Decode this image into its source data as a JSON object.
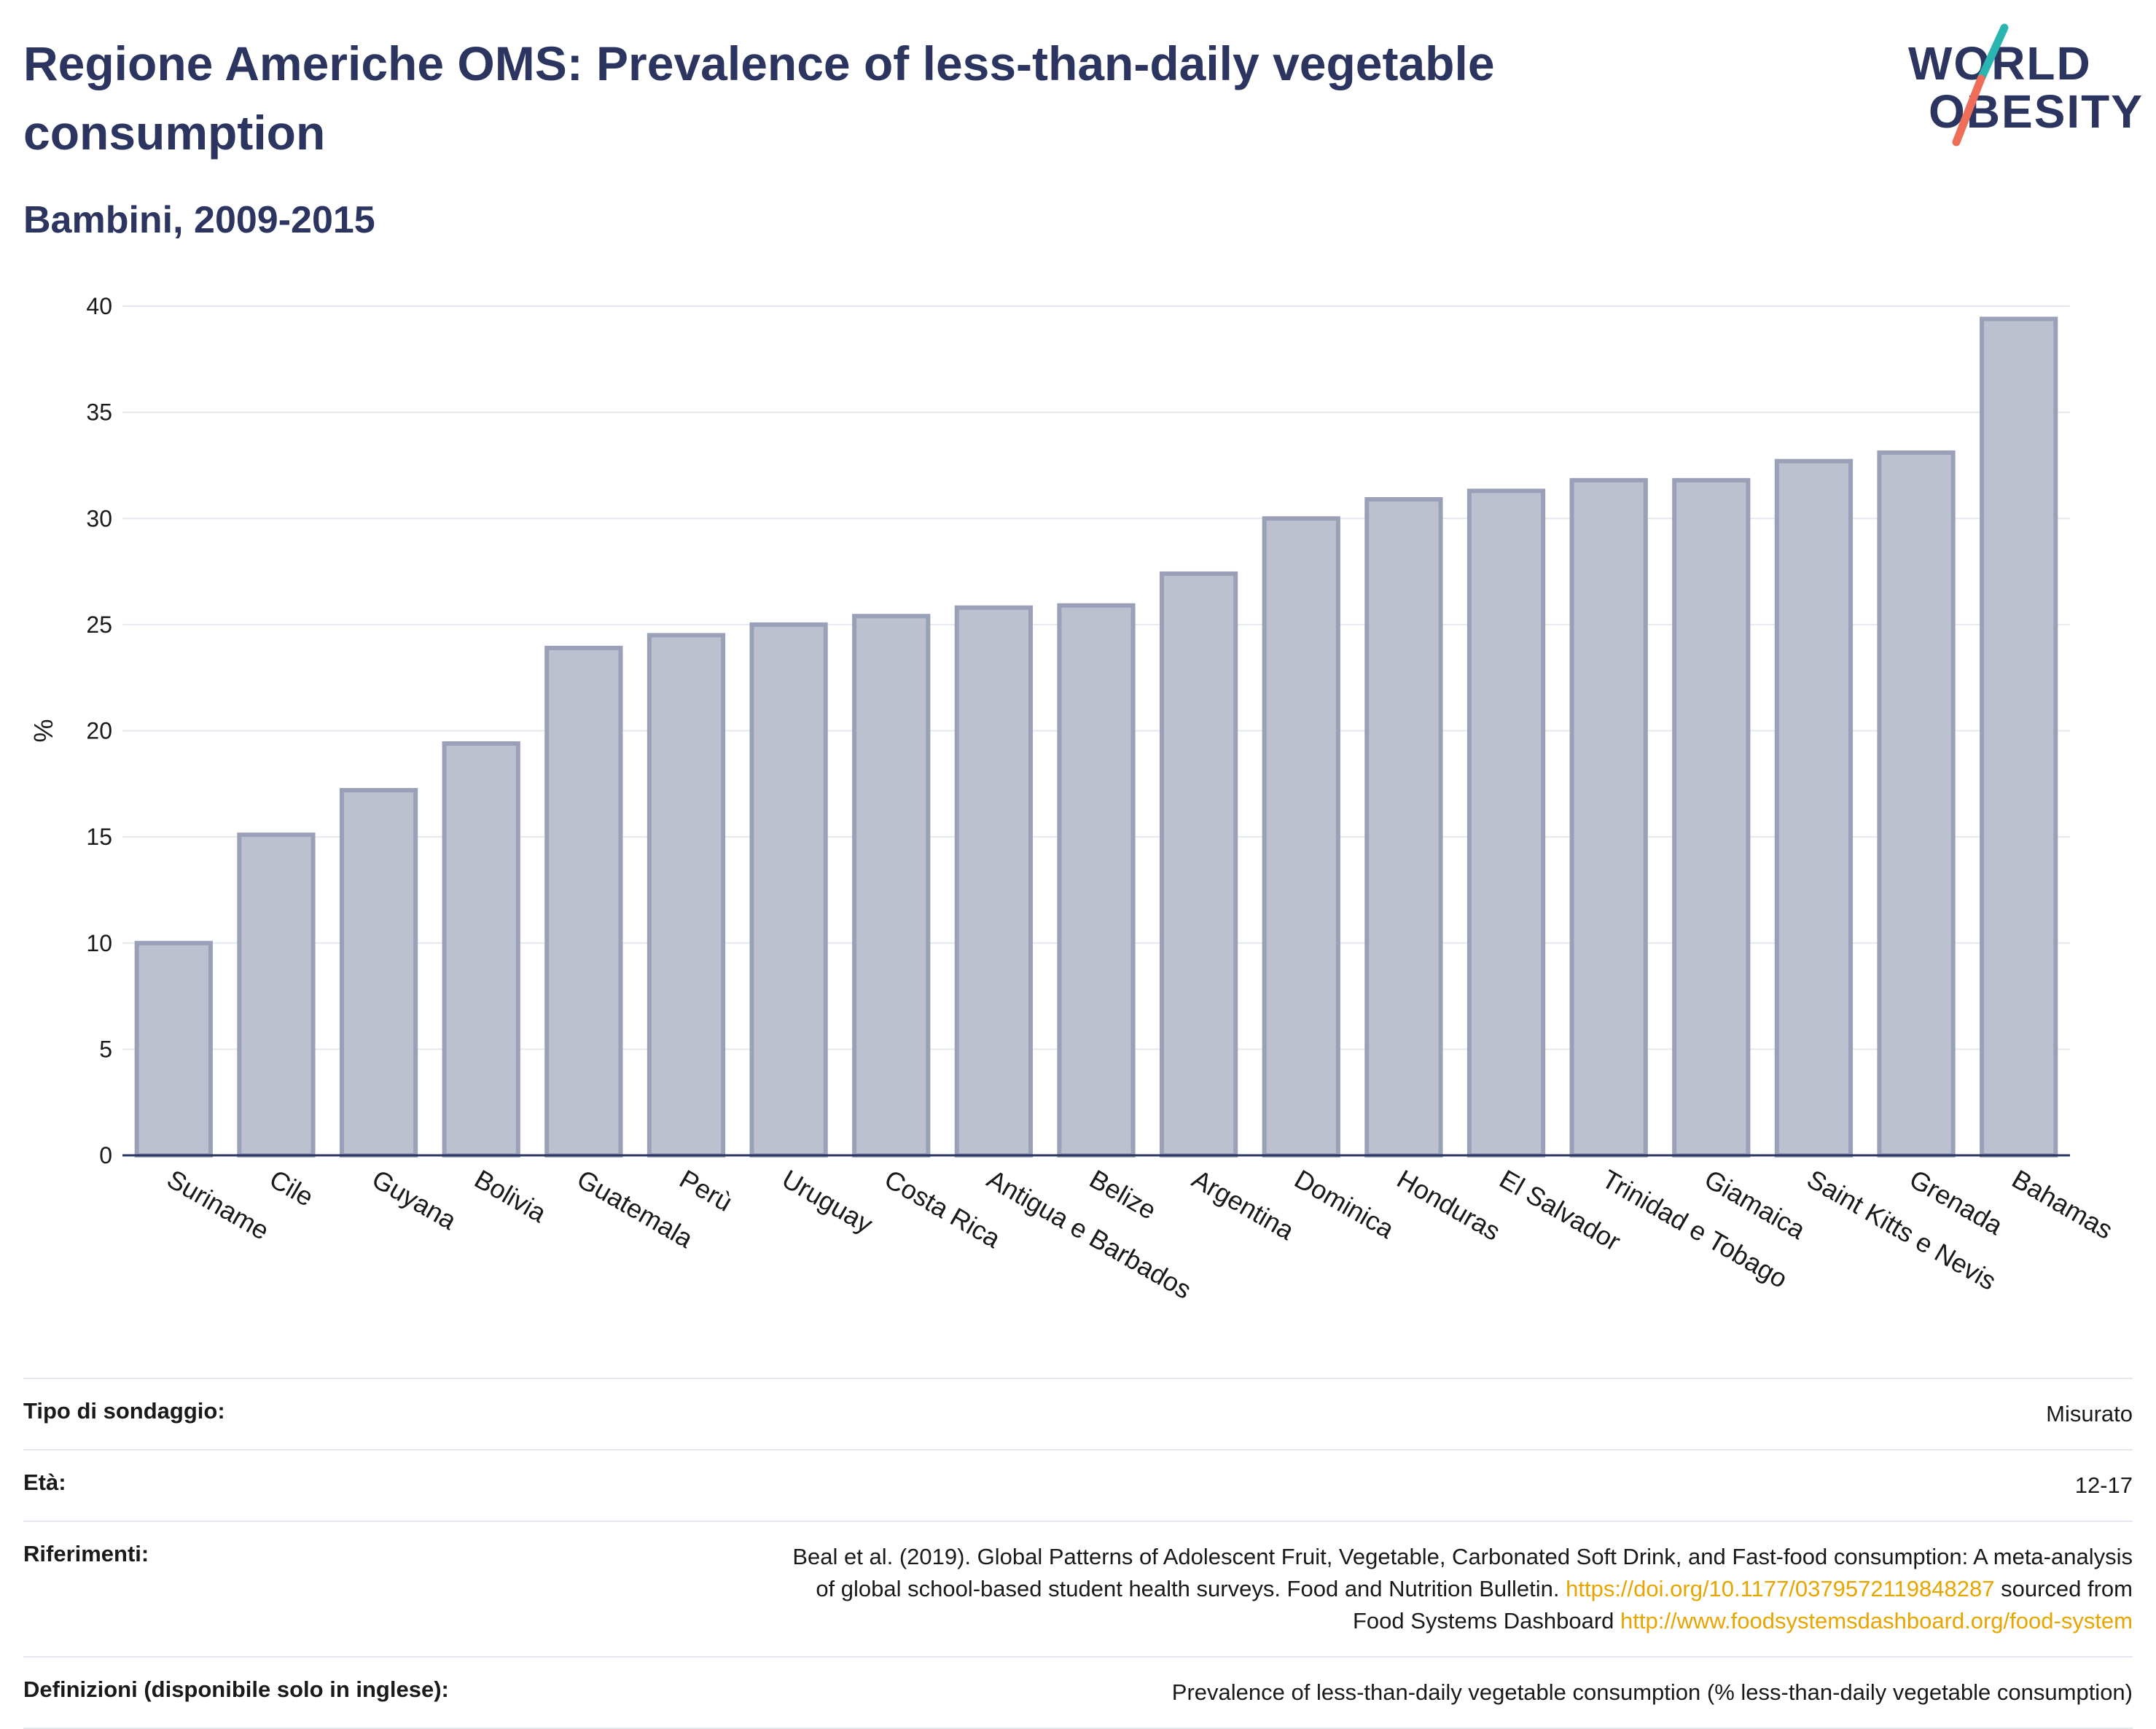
{
  "header": {
    "title": "Regione Americhe OMS: Prevalence of less-than-daily vegetable consumption",
    "subtitle": "Bambini, 2009-2015"
  },
  "logo": {
    "line1": "WORLD",
    "line2": "OBESITY",
    "colors": {
      "navy": "#2b3560",
      "teal": "#2bb5b0",
      "coral": "#ee6e5a"
    }
  },
  "chart_data": {
    "type": "bar",
    "categories": [
      "Suriname",
      "Cile",
      "Guyana",
      "Bolivia",
      "Guatemala",
      "Perù",
      "Uruguay",
      "Costa Rica",
      "Antigua e Barbados",
      "Belize",
      "Argentina",
      "Dominica",
      "Honduras",
      "El Salvador",
      "Trinidad e Tobago",
      "Giamaica",
      "Saint Kitts e Nevis",
      "Grenada",
      "Bahamas"
    ],
    "values": [
      10.0,
      15.1,
      17.2,
      19.4,
      23.9,
      24.5,
      25.0,
      25.4,
      25.8,
      25.9,
      27.4,
      30.0,
      30.9,
      31.3,
      31.8,
      31.8,
      32.7,
      33.1,
      39.4
    ],
    "ylabel": "%",
    "ylim": [
      0,
      40
    ],
    "yticks": [
      0,
      5,
      10,
      15,
      20,
      25,
      30,
      35,
      40
    ],
    "grid": true,
    "colors": {
      "bar_fill": "#bcc0cf",
      "bar_stroke": "#9aa0b8",
      "grid": "#e6e8ef",
      "axis": "#2b3560"
    }
  },
  "info": {
    "survey_label": "Tipo di sondaggio:",
    "survey_value": "Misurato",
    "age_label": "Età:",
    "age_value": "12-17",
    "refs_label": "Riferimenti:",
    "refs_line1": "Beal et al. (2019). Global Patterns of Adolescent Fruit, Vegetable, Carbonated Soft Drink, and Fast-food consumption: A meta-analysis",
    "refs_line2_prefix": "of global school-based student health surveys. Food and Nutrition Bulletin. ",
    "refs_link1": "https://doi.org/10.1177/0379572119848287",
    "refs_line2_suffix": " sourced from",
    "refs_line3_prefix": "Food Systems Dashboard ",
    "refs_link2": "http://www.foodsystemsdashboard.org/food-system",
    "defs_label": "Definizioni (disponibile solo in inglese):",
    "defs_value": "Prevalence of less-than-daily vegetable consumption (% less-than-daily vegetable consumption)"
  }
}
